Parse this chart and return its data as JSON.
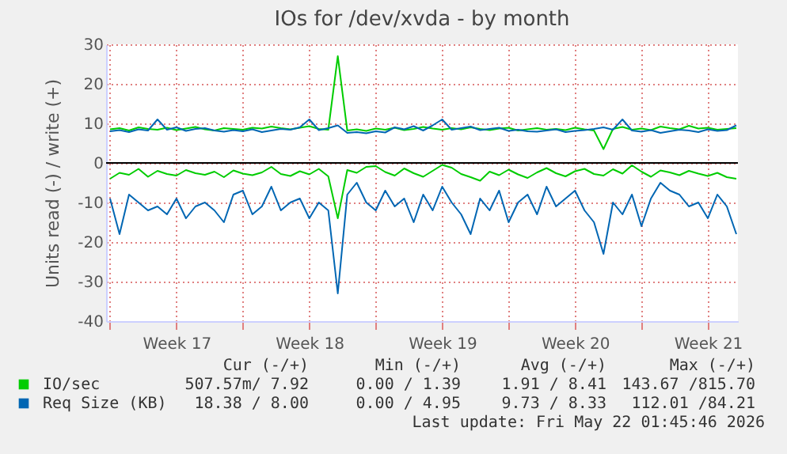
{
  "chart_data": {
    "type": "line",
    "title": "IOs for /dev/xvda - by month",
    "ylabel": "Units read (-) / write (+)",
    "x": [
      "2026-04-19T00:00",
      "2026-04-19T12:00",
      "2026-04-20T00:00",
      "2026-04-20T12:00",
      "2026-04-21T00:00",
      "2026-04-21T12:00",
      "2026-04-22T00:00",
      "2026-04-22T12:00",
      "2026-04-23T00:00",
      "2026-04-23T12:00",
      "2026-04-24T00:00",
      "2026-04-24T12:00",
      "2026-04-25T00:00",
      "2026-04-25T12:00",
      "2026-04-26T00:00",
      "2026-04-26T12:00",
      "2026-04-27T00:00",
      "2026-04-27T12:00",
      "2026-04-28T00:00",
      "2026-04-28T12:00",
      "2026-04-29T00:00",
      "2026-04-29T12:00",
      "2026-04-30T00:00",
      "2026-04-30T12:00",
      "2026-05-01T00:00",
      "2026-05-01T12:00",
      "2026-05-02T00:00",
      "2026-05-02T12:00",
      "2026-05-03T00:00",
      "2026-05-03T12:00",
      "2026-05-04T00:00",
      "2026-05-04T12:00",
      "2026-05-05T00:00",
      "2026-05-05T12:00",
      "2026-05-06T00:00",
      "2026-05-06T12:00",
      "2026-05-07T00:00",
      "2026-05-07T12:00",
      "2026-05-08T00:00",
      "2026-05-08T12:00",
      "2026-05-09T00:00",
      "2026-05-09T12:00",
      "2026-05-10T00:00",
      "2026-05-10T12:00",
      "2026-05-11T00:00",
      "2026-05-11T12:00",
      "2026-05-12T00:00",
      "2026-05-12T12:00",
      "2026-05-13T00:00",
      "2026-05-13T12:00",
      "2026-05-14T00:00",
      "2026-05-14T12:00",
      "2026-05-15T00:00",
      "2026-05-15T12:00",
      "2026-05-16T00:00",
      "2026-05-16T12:00",
      "2026-05-17T00:00",
      "2026-05-17T12:00",
      "2026-05-18T00:00",
      "2026-05-18T12:00",
      "2026-05-19T00:00",
      "2026-05-19T12:00",
      "2026-05-20T00:00",
      "2026-05-20T12:00",
      "2026-05-21T00:00",
      "2026-05-21T12:00",
      "2026-05-22T00:00"
    ],
    "series": [
      {
        "color": "#00cc00",
        "values": [
          -4,
          -2.5,
          -3,
          -1.5,
          -3.5,
          -2,
          -2.8,
          -3.2,
          -1.8,
          -2.6,
          -3,
          -2.2,
          -3.6,
          -1.9,
          -2.7,
          -3.1,
          -2.4,
          -1,
          -2.8,
          -3.3,
          -2.1,
          -2.9,
          -1.5,
          -3.4,
          -14,
          -1.8,
          -2.5,
          -1,
          -0.8,
          -2.3,
          -3.2,
          -1.4,
          -2.6,
          -3.5,
          -2,
          -0.5,
          -1.2,
          -2.8,
          -3.6,
          -4.5,
          -2.2,
          -3.1,
          -1.7,
          -2.9,
          -3.8,
          -2.4,
          -1.3,
          -2.6,
          -3.4,
          -2.1,
          -1.5,
          -2.8,
          -3.2,
          -1.6,
          -2.7,
          -0.6,
          -2.2,
          -3.5,
          -1.9,
          -2.4,
          -3.1,
          -2,
          -2.7,
          -3.3,
          -2.5,
          -3.6,
          -4
        ]
      },
      {
        "name": "IO/sec",
        "color": "#00cc00",
        "values": [
          8.5,
          8.8,
          8.2,
          9,
          8.6,
          8.4,
          8.9,
          8.3,
          8.7,
          9.1,
          8.5,
          8.2,
          8.8,
          8.6,
          8.4,
          8.9,
          8.7,
          9.2,
          8.8,
          8.5,
          8.9,
          9.3,
          8.6,
          8.4,
          27,
          8.2,
          8.5,
          8.1,
          8.7,
          8.4,
          8.9,
          8.3,
          8.6,
          9.1,
          8.7,
          8.4,
          8.8,
          8.5,
          9,
          8.6,
          8.3,
          8.7,
          8.9,
          8.2,
          8.5,
          8.8,
          8.4,
          8.6,
          8.3,
          8.9,
          8.5,
          8.2,
          3.5,
          8.6,
          9.1,
          8.4,
          8.7,
          8.3,
          9.2,
          8.8,
          8.5,
          9.4,
          8.7,
          8.9,
          8.4,
          8.6,
          8.8
        ]
      },
      {
        "color": "#0066b3",
        "values": [
          -9,
          -18,
          -8,
          -10,
          -12,
          -11,
          -13,
          -9,
          -14,
          -11,
          -10,
          -12,
          -15,
          -8,
          -7,
          -13,
          -11,
          -6,
          -12,
          -10,
          -9,
          -14,
          -10,
          -12,
          -33,
          -8,
          -5,
          -10,
          -12,
          -7,
          -11,
          -9,
          -15,
          -8,
          -12,
          -6,
          -10,
          -13,
          -18,
          -9,
          -12,
          -7,
          -15,
          -10,
          -8,
          -13,
          -6,
          -11,
          -9,
          -7,
          -12,
          -15,
          -23,
          -10,
          -13,
          -8,
          -16,
          -9,
          -5,
          -7,
          -8,
          -11,
          -10,
          -14,
          -8,
          -11,
          -18
        ]
      },
      {
        "name": "Req Size (KB)",
        "color": "#0066b3",
        "values": [
          8,
          8.3,
          7.8,
          8.5,
          8.2,
          11,
          8.4,
          9,
          8.1,
          8.6,
          8.8,
          8.2,
          7.9,
          8.3,
          8,
          8.5,
          7.8,
          8.2,
          8.6,
          8.4,
          9,
          11,
          8.3,
          8.8,
          9.5,
          7.6,
          7.8,
          7.5,
          8,
          7.7,
          9,
          8.5,
          9.3,
          8.2,
          9.5,
          11,
          8.4,
          8.8,
          9.2,
          8.3,
          8.6,
          8.9,
          8.1,
          8.4,
          8,
          7.9,
          8.2,
          8.5,
          7.8,
          8.1,
          8.3,
          8.6,
          9,
          8.4,
          11,
          8.2,
          7.9,
          8.3,
          7.6,
          8,
          8.4,
          8.2,
          7.8,
          8.5,
          8.1,
          8.3,
          9.5
        ]
      }
    ],
    "xlim": [
      "2026-04-18T19:00",
      "2026-05-22T02:00"
    ],
    "xticks": [
      {
        "value": "2026-04-19T00:00",
        "label": null
      },
      {
        "value": "2026-04-22T12:00",
        "label": "Week 17"
      },
      {
        "value": "2026-04-26T00:00",
        "label": null
      },
      {
        "value": "2026-04-29T12:00",
        "label": "Week 18"
      },
      {
        "value": "2026-05-03T00:00",
        "label": null
      },
      {
        "value": "2026-05-06T12:00",
        "label": "Week 19"
      },
      {
        "value": "2026-05-10T00:00",
        "label": null
      },
      {
        "value": "2026-05-13T12:00",
        "label": "Week 20"
      },
      {
        "value": "2026-05-17T00:00",
        "label": null
      },
      {
        "value": "2026-05-20T12:00",
        "label": "Week 21"
      }
    ],
    "ylim": [
      -40,
      30
    ],
    "yticks": [
      -40,
      -30,
      -20,
      -10,
      0,
      10,
      20,
      30
    ],
    "grid": true,
    "legend": "bottom",
    "ref_lines": [
      {
        "axis": "y",
        "value": 0,
        "color": "#000000"
      }
    ],
    "annotations": [
      "Cur (-/+)",
      "Min (-/+)",
      "Avg (-/+)",
      "Max (-/+)",
      "507.57m/ 7.92",
      "0.00 / 1.39",
      "1.91 / 8.41",
      "143.67 /815.70",
      "18.38 / 8.00",
      "0.00 / 4.95",
      "9.73 / 8.33",
      "112.01 /84.21",
      "Last update: Fri May 22 01:45:46 2026"
    ]
  }
}
